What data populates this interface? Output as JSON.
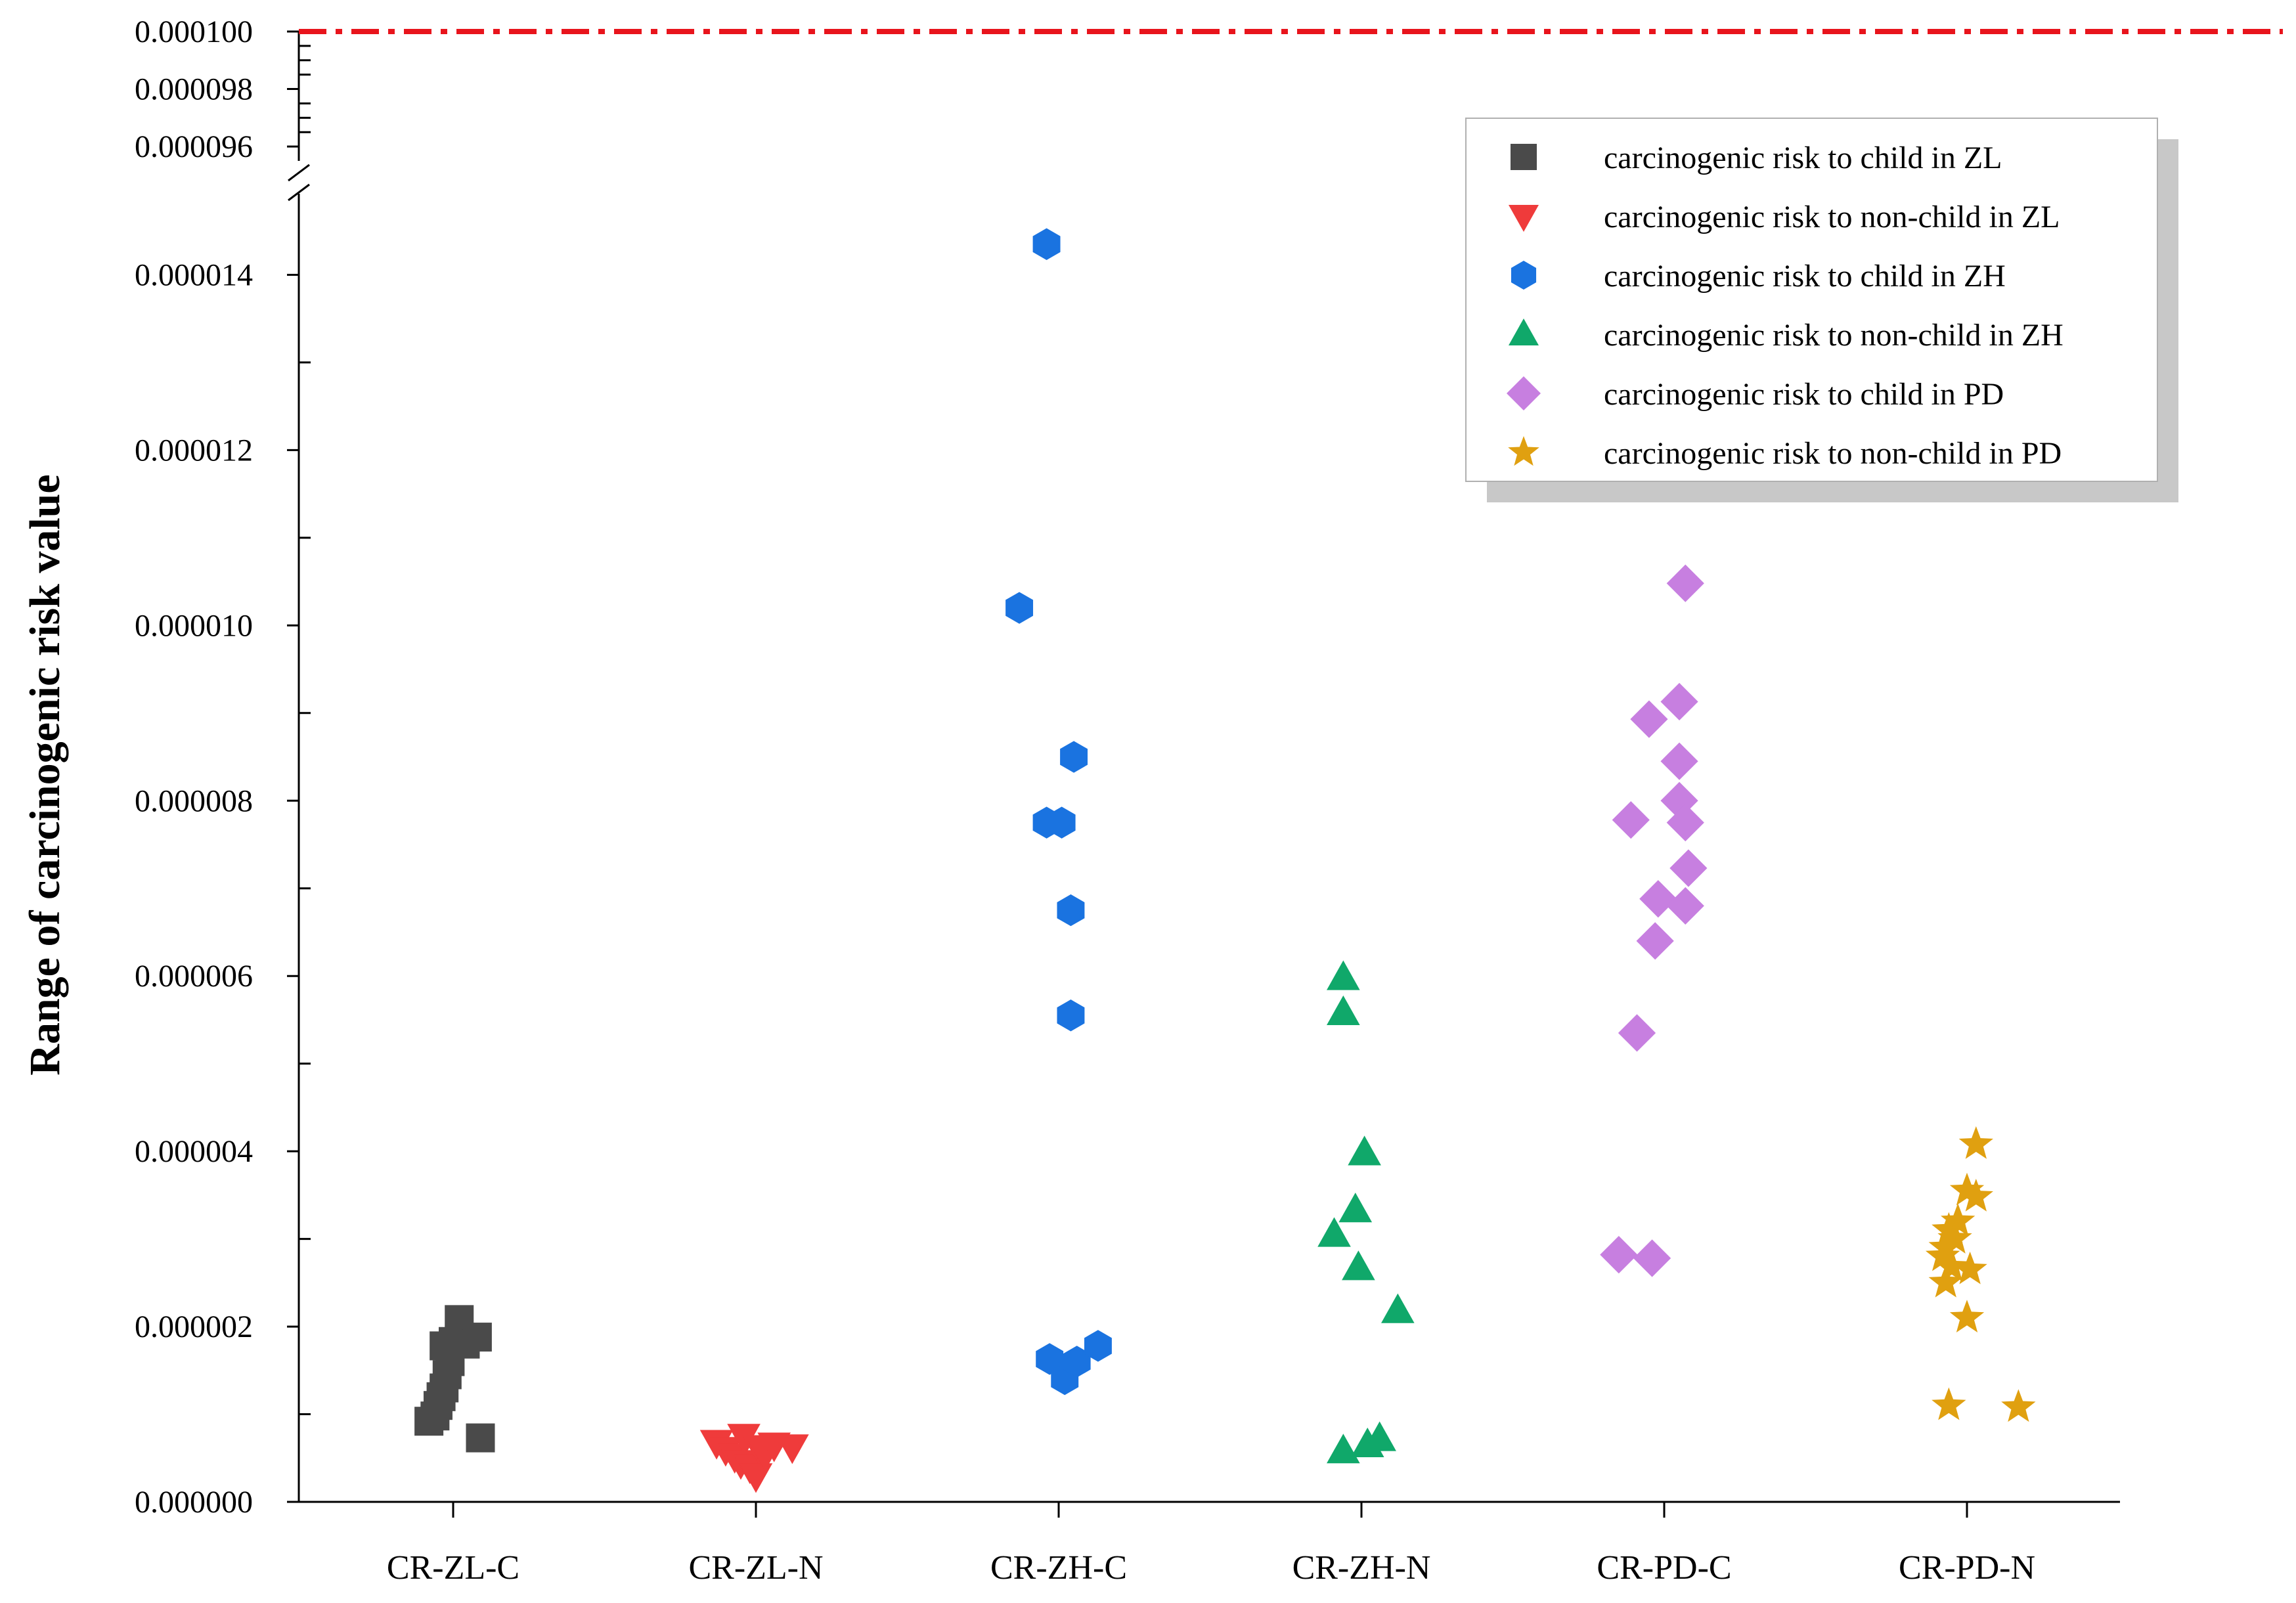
{
  "chart_data": {
    "type": "scatter",
    "ylabel": "Range of carcinogenic risk value",
    "xlabel": "",
    "categories": [
      "CR-ZL-C",
      "CR-ZL-N",
      "CR-ZH-C",
      "CR-ZH-N",
      "CR-PD-C",
      "CR-PD-N"
    ],
    "y_axis": {
      "broken": true,
      "lower_range": [
        0,
        1.5e-05
      ],
      "upper_range": [
        9.55e-05,
        0.0001
      ],
      "lower_ticks": [
        "0.000000",
        "0.000002",
        "0.000004",
        "0.000006",
        "0.000008",
        "0.000010",
        "0.000012",
        "0.000014"
      ],
      "upper_ticks": [
        "0.000096",
        "0.000098",
        "0.000100"
      ]
    },
    "reference_line": {
      "value": 0.0001,
      "color": "#e8141c",
      "style": "dash-dot"
    },
    "legend": {
      "placement": "top-right"
    },
    "series": [
      {
        "name": "carcinogenic risk to child in ZL",
        "marker": "square",
        "color": "#4a4a4a",
        "category": "CR-ZL-C",
        "points": [
          {
            "dx": -0.08,
            "y": 9.2e-07
          },
          {
            "dx": -0.06,
            "y": 9.8e-07
          },
          {
            "dx": -0.05,
            "y": 1.1e-06
          },
          {
            "dx": -0.04,
            "y": 1.2e-06
          },
          {
            "dx": -0.03,
            "y": 1.3e-06
          },
          {
            "dx": -0.02,
            "y": 1.45e-06
          },
          {
            "dx": -0.01,
            "y": 1.6e-06
          },
          {
            "dx": -0.03,
            "y": 1.78e-06
          },
          {
            "dx": 0.0,
            "y": 1.83e-06
          },
          {
            "dx": 0.02,
            "y": 2.08e-06
          },
          {
            "dx": 0.04,
            "y": 1.8e-06
          },
          {
            "dx": 0.08,
            "y": 1.88e-06
          },
          {
            "dx": 0.09,
            "y": 7.3e-07
          }
        ]
      },
      {
        "name": "carcinogenic risk to non-child in ZL",
        "marker": "triangle-down",
        "color": "#ef3b3b",
        "category": "CR-ZL-N",
        "points": [
          {
            "dx": -0.13,
            "y": 6.8e-07
          },
          {
            "dx": -0.1,
            "y": 6e-07
          },
          {
            "dx": -0.07,
            "y": 5.2e-07
          },
          {
            "dx": -0.05,
            "y": 4.5e-07
          },
          {
            "dx": -0.04,
            "y": 7.5e-07
          },
          {
            "dx": -0.02,
            "y": 4e-07
          },
          {
            "dx": 0.0,
            "y": 3e-07
          },
          {
            "dx": 0.01,
            "y": 6.2e-07
          },
          {
            "dx": 0.03,
            "y": 5.5e-07
          },
          {
            "dx": 0.06,
            "y": 6.5e-07
          },
          {
            "dx": 0.12,
            "y": 6.3e-07
          }
        ]
      },
      {
        "name": "carcinogenic risk to child in ZH",
        "marker": "hexagon",
        "color": "#1a73e0",
        "category": "CR-ZH-C",
        "points": [
          {
            "dx": -0.04,
            "y": 1.435e-05
          },
          {
            "dx": -0.13,
            "y": 1.02e-05
          },
          {
            "dx": 0.05,
            "y": 8.5e-06
          },
          {
            "dx": -0.04,
            "y": 7.75e-06
          },
          {
            "dx": 0.01,
            "y": 7.75e-06
          },
          {
            "dx": 0.04,
            "y": 6.75e-06
          },
          {
            "dx": 0.04,
            "y": 5.55e-06
          },
          {
            "dx": -0.03,
            "y": 1.63e-06
          },
          {
            "dx": 0.02,
            "y": 1.4e-06
          },
          {
            "dx": 0.06,
            "y": 1.6e-06
          },
          {
            "dx": 0.13,
            "y": 1.78e-06
          }
        ]
      },
      {
        "name": "carcinogenic risk to non-child in ZH",
        "marker": "triangle-up",
        "color": "#10a86a",
        "category": "CR-ZH-N",
        "points": [
          {
            "dx": -0.06,
            "y": 5.98e-06
          },
          {
            "dx": -0.06,
            "y": 5.58e-06
          },
          {
            "dx": 0.01,
            "y": 3.98e-06
          },
          {
            "dx": -0.02,
            "y": 3.33e-06
          },
          {
            "dx": -0.09,
            "y": 3.05e-06
          },
          {
            "dx": -0.01,
            "y": 2.67e-06
          },
          {
            "dx": 0.12,
            "y": 2.18e-06
          },
          {
            "dx": -0.06,
            "y": 5.8e-07
          },
          {
            "dx": 0.02,
            "y": 6.5e-07
          },
          {
            "dx": 0.06,
            "y": 7.2e-07
          }
        ]
      },
      {
        "name": "carcinogenic risk to child in PD",
        "marker": "diamond",
        "color": "#c77fe0",
        "category": "CR-PD-C",
        "points": [
          {
            "dx": 0.07,
            "y": 1.048e-05
          },
          {
            "dx": 0.05,
            "y": 9.13e-06
          },
          {
            "dx": -0.05,
            "y": 8.93e-06
          },
          {
            "dx": 0.05,
            "y": 8.45e-06
          },
          {
            "dx": 0.05,
            "y": 8e-06
          },
          {
            "dx": -0.11,
            "y": 7.78e-06
          },
          {
            "dx": 0.07,
            "y": 7.75e-06
          },
          {
            "dx": 0.08,
            "y": 7.23e-06
          },
          {
            "dx": -0.02,
            "y": 6.88e-06
          },
          {
            "dx": 0.07,
            "y": 6.8e-06
          },
          {
            "dx": -0.03,
            "y": 6.4e-06
          },
          {
            "dx": -0.09,
            "y": 5.35e-06
          },
          {
            "dx": -0.15,
            "y": 2.82e-06
          },
          {
            "dx": -0.04,
            "y": 2.78e-06
          }
        ]
      },
      {
        "name": "carcinogenic risk to non-child in PD",
        "marker": "star",
        "color": "#e0a010",
        "category": "CR-PD-N",
        "points": [
          {
            "dx": 0.03,
            "y": 4.08e-06
          },
          {
            "dx": 0.0,
            "y": 3.55e-06
          },
          {
            "dx": 0.03,
            "y": 3.48e-06
          },
          {
            "dx": -0.03,
            "y": 3.2e-06
          },
          {
            "dx": -0.06,
            "y": 3.1e-06
          },
          {
            "dx": -0.04,
            "y": 3e-06
          },
          {
            "dx": -0.07,
            "y": 2.9e-06
          },
          {
            "dx": -0.08,
            "y": 2.8e-06
          },
          {
            "dx": -0.05,
            "y": 2.68e-06
          },
          {
            "dx": 0.01,
            "y": 2.65e-06
          },
          {
            "dx": -0.07,
            "y": 2.5e-06
          },
          {
            "dx": 0.0,
            "y": 2.1e-06
          },
          {
            "dx": -0.06,
            "y": 1.1e-06
          },
          {
            "dx": 0.17,
            "y": 1.08e-06
          }
        ]
      }
    ]
  }
}
